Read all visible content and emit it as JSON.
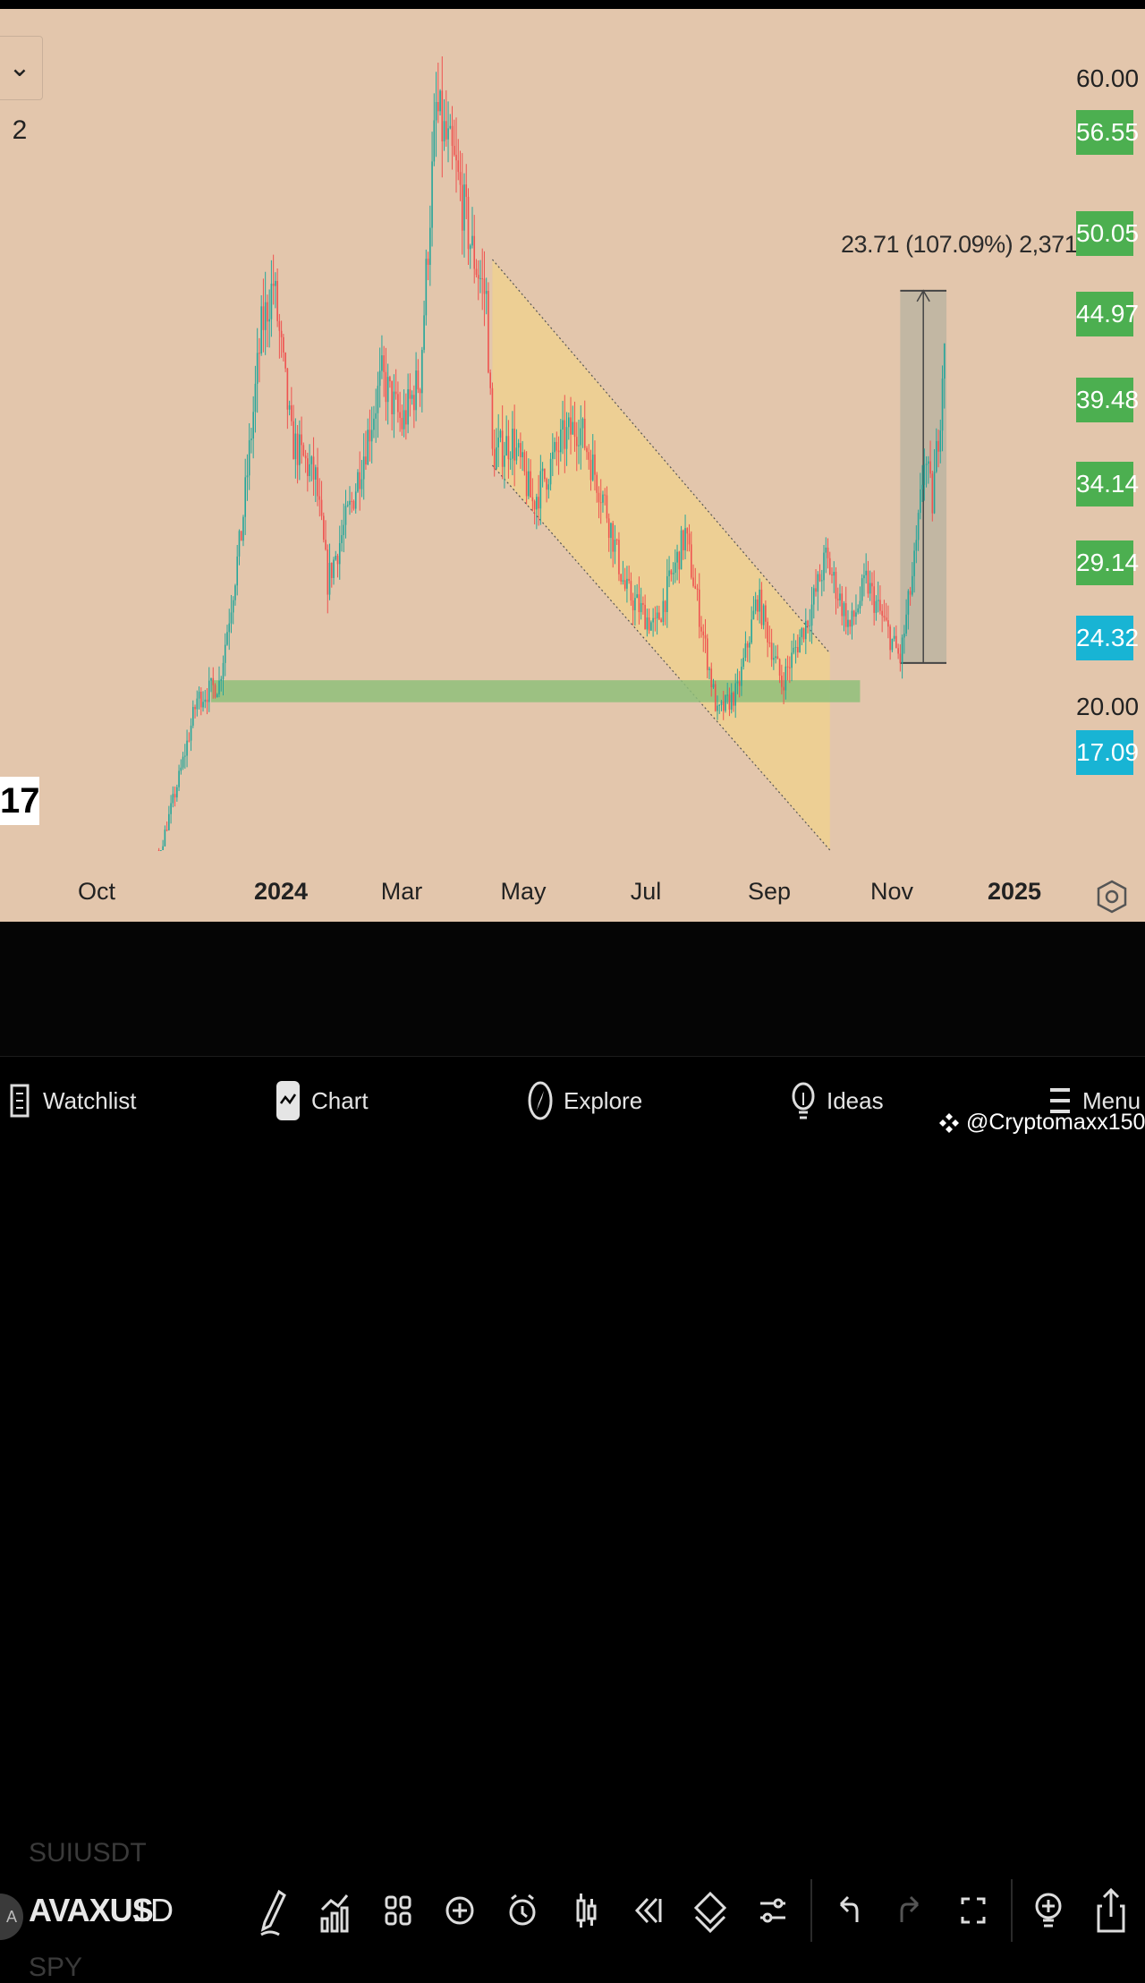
{
  "legend": {
    "chip_label": "⌄ 2"
  },
  "measure": {
    "label": "23.71 (107.09%) 2,371"
  },
  "price_axis": {
    "plain_labels": [
      {
        "id": "top",
        "text": "60.00"
      },
      {
        "id": "mid",
        "text": "20.00"
      }
    ],
    "badges": [
      {
        "text": "56.55",
        "color": "#4caf50"
      },
      {
        "text": "50.05",
        "color": "#4caf50"
      },
      {
        "text": "44.97",
        "color": "#4caf50"
      },
      {
        "text": "39.48",
        "color": "#4caf50"
      },
      {
        "text": "34.14",
        "color": "#4caf50"
      },
      {
        "text": "29.14",
        "color": "#4caf50"
      },
      {
        "text": "24.32",
        "color": "#18b4d4"
      },
      {
        "text": "17.09",
        "color": "#18b4d4"
      }
    ]
  },
  "time_axis": {
    "ticks": [
      "Oct",
      "2024",
      "Mar",
      "May",
      "Jul",
      "Sep",
      "Nov",
      "2025"
    ]
  },
  "logo": {
    "text": "17"
  },
  "toolbar": {
    "symbol_above": "SUIUSDT",
    "symbol": "AVAXUS",
    "symbol_avatar": "A",
    "symbol_below": "SPY",
    "interval": "1D"
  },
  "bottom_nav": {
    "watchlist": "Watchlist",
    "chart": "Chart",
    "explore": "Explore",
    "ideas": "Ideas",
    "menu": "Menu"
  },
  "watermark": {
    "text": "@Cryptomaxx150"
  },
  "colors": {
    "background": "#e3c6ac",
    "up_candle": "#26a69a",
    "down_candle": "#ef5350",
    "channel_fill": "#f0d28c",
    "support_zone": "#8fbf7a",
    "badge_green": "#4caf50",
    "badge_cyan": "#18b4d4"
  },
  "chart_data": {
    "type": "candlestick",
    "symbol": "AVAXUSDT",
    "interval": "1D",
    "price_range": [
      9,
      66
    ],
    "close_path": [
      {
        "t": "2023-09-20",
        "p": 9.8
      },
      {
        "t": "2023-10-20",
        "p": 9.2
      },
      {
        "t": "2023-11-01",
        "p": 10.5
      },
      {
        "t": "2023-11-12",
        "p": 16
      },
      {
        "t": "2023-11-20",
        "p": 20.5
      },
      {
        "t": "2023-12-01",
        "p": 21.5
      },
      {
        "t": "2023-12-12",
        "p": 31
      },
      {
        "t": "2023-12-22",
        "p": 44
      },
      {
        "t": "2023-12-28",
        "p": 47
      },
      {
        "t": "2024-01-06",
        "p": 37
      },
      {
        "t": "2024-01-18",
        "p": 34.5
      },
      {
        "t": "2024-01-24",
        "p": 28
      },
      {
        "t": "2024-02-05",
        "p": 33
      },
      {
        "t": "2024-02-20",
        "p": 41
      },
      {
        "t": "2024-03-01",
        "p": 38
      },
      {
        "t": "2024-03-10",
        "p": 41
      },
      {
        "t": "2024-03-18",
        "p": 58
      },
      {
        "t": "2024-03-28",
        "p": 54
      },
      {
        "t": "2024-04-05",
        "p": 49
      },
      {
        "t": "2024-04-12",
        "p": 46
      },
      {
        "t": "2024-04-15",
        "p": 36
      },
      {
        "t": "2024-04-25",
        "p": 37
      },
      {
        "t": "2024-05-05",
        "p": 33
      },
      {
        "t": "2024-05-20",
        "p": 37
      },
      {
        "t": "2024-05-28",
        "p": 38
      },
      {
        "t": "2024-06-10",
        "p": 33
      },
      {
        "t": "2024-06-20",
        "p": 27.5
      },
      {
        "t": "2024-07-05",
        "p": 25
      },
      {
        "t": "2024-07-20",
        "p": 31
      },
      {
        "t": "2024-08-05",
        "p": 19.5
      },
      {
        "t": "2024-08-15",
        "p": 21
      },
      {
        "t": "2024-08-25",
        "p": 27
      },
      {
        "t": "2024-09-06",
        "p": 21.5
      },
      {
        "t": "2024-09-20",
        "p": 26
      },
      {
        "t": "2024-09-28",
        "p": 29.5
      },
      {
        "t": "2024-10-10",
        "p": 25
      },
      {
        "t": "2024-10-18",
        "p": 28
      },
      {
        "t": "2024-11-04",
        "p": 23
      },
      {
        "t": "2024-11-12",
        "p": 30
      },
      {
        "t": "2024-11-16",
        "p": 36
      },
      {
        "t": "2024-11-20",
        "p": 33
      },
      {
        "t": "2024-11-24",
        "p": 39
      },
      {
        "t": "2024-11-26",
        "p": 44
      }
    ],
    "annotations": {
      "descending_channel": {
        "start": "2024-04-15",
        "end": "2024-09-30"
      },
      "support_zone": {
        "start": "2023-11-27",
        "end": "2024-10-15",
        "price_low": 20.3,
        "price_high": 21.7
      },
      "measure": {
        "start": "2024-11-04",
        "end": "2024-11-27",
        "price_low": 22.8,
        "price_high": 46.5,
        "change": 23.71,
        "change_pct": 107.09,
        "ticks": 2371
      }
    }
  }
}
